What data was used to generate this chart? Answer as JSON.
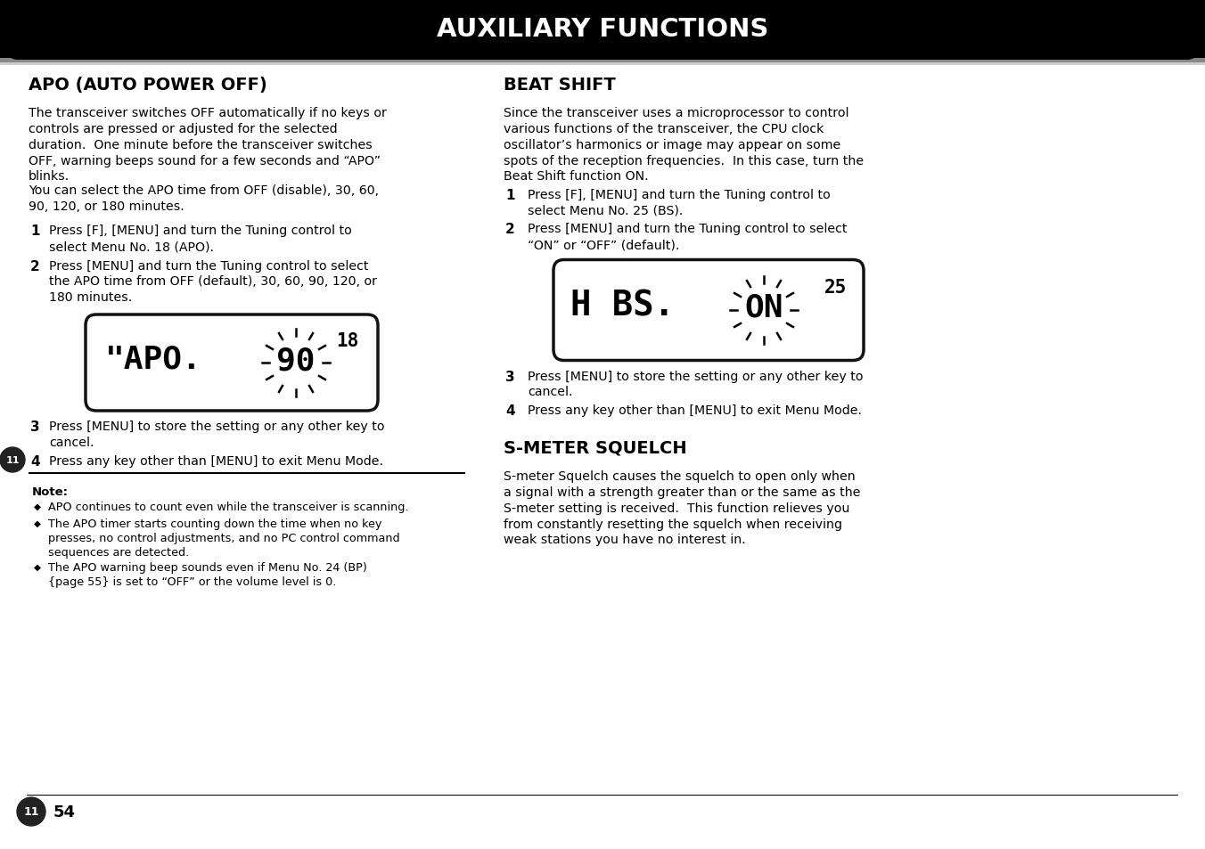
{
  "title": "AUXILIARY FUNCTIONS",
  "header_bg": "#000000",
  "header_text_color": "#ffffff",
  "page_bg": "#ffffff",
  "page_text_color": "#000000",
  "left_section_title": "APO (AUTO POWER OFF)",
  "left_para1": "The transceiver switches OFF automatically if no keys or\ncontrols are pressed or adjusted for the selected\nduration.  One minute before the transceiver switches\nOFF, warning beeps sound for a few seconds and “APO”\nblinks.",
  "left_para2": "You can select the APO time from OFF (disable), 30, 60,\n90, 120, or 180 minutes.",
  "left_step1_plain": "Press ",
  "left_step1_b1": "[F]",
  "left_step1_m1": ", ",
  "left_step1_b2": "[MENU]",
  "left_step1_m2": " and turn the ",
  "left_step1_b3": "Tuning",
  "left_step1_m3": " control to\nselect Menu No. 18 (APO).",
  "left_step2_plain": "Press ",
  "left_step2_b1": "[MENU]",
  "left_step2_m1": " and turn the ",
  "left_step2_b2": "Tuning",
  "left_step2_m2": " control to select\nthe APO time from OFF (default), 30, 60, 90, 120, or\n180 minutes.",
  "left_step3": "Press [MENU] to store the setting or any other key to\ncancel.",
  "left_step4": "Press any key other than [MENU] to exit Menu Mode.",
  "note_title": "Note:",
  "note1": "APO continues to count even while the transceiver is scanning.",
  "note2": "The APO timer starts counting down the time when no key\npresses, no control adjustments, and no PC control command\nsequences are detected.",
  "note3": "The APO warning beep sounds even if Menu No. 24 (BP)\n{page 55} is set to “OFF” or the volume level is 0.",
  "right_section1_title": "BEAT SHIFT",
  "right_para1": "Since the transceiver uses a microprocessor to control\nvarious functions of the transceiver, the CPU clock\noscillator’s harmonics or image may appear on some\nspots of the reception frequencies.  In this case, turn the\nBeat Shift function ON.",
  "right_step1_plain": "Press ",
  "right_step1_b1": "[F]",
  "right_step1_m1": ", ",
  "right_step1_b2": "[MENU]",
  "right_step1_m2": " and turn the ",
  "right_step1_b3": "Tuning",
  "right_step1_m3": " control to\nselect Menu No. 25 (BS).",
  "right_step2_plain": "Press ",
  "right_step2_b1": "[MENU]",
  "right_step2_m1": " and turn the ",
  "right_step2_b2": "Tuning",
  "right_step2_m2": " control to select\n“ON” or “OFF” (default).",
  "right_step3": "Press [MENU] to store the setting or any other key to\ncancel.",
  "right_step4": "Press any key other than [MENU] to exit Menu Mode.",
  "right_section2_title": "S-METER SQUELCH",
  "right_para2": "S-meter Squelch causes the squelch to open only when\na signal with a strength greater than or the same as the\nS-meter setting is received.  This function relieves you\nfrom constantly resetting the squelch when receiving\nweak stations you have no interest in.",
  "page_number": "54"
}
